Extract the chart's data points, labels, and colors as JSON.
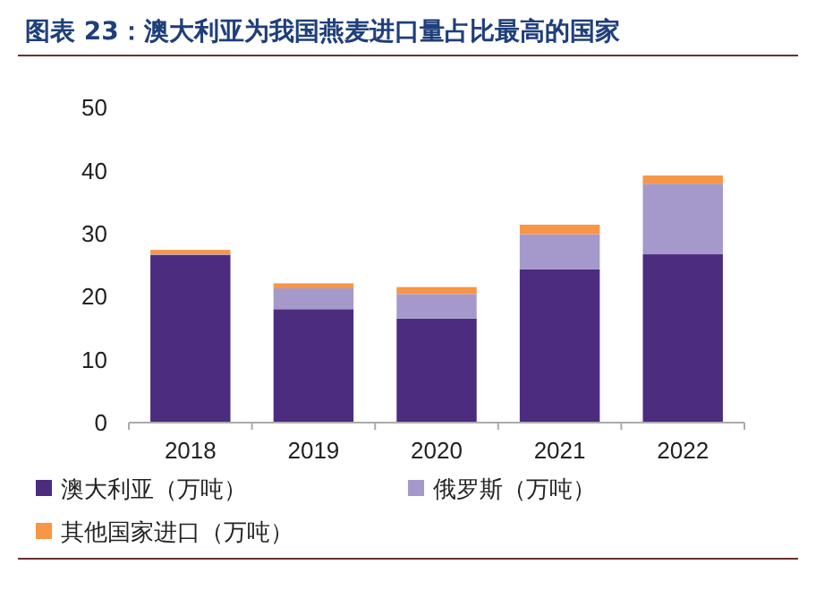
{
  "chart_data": {
    "type": "bar",
    "title": "图表 23：澳大利亚为我国燕麦进口量占比最高的国家",
    "categories": [
      "2018",
      "2019",
      "2020",
      "2021",
      "2022"
    ],
    "stacked": true,
    "series": [
      {
        "name": "澳大利亚（万吨）",
        "color": "#4b2c7f",
        "values": [
          26.6,
          18.0,
          16.5,
          24.3,
          26.7
        ]
      },
      {
        "name": "俄罗斯（万吨）",
        "color": "#a599cb",
        "values": [
          0.1,
          3.3,
          3.9,
          5.6,
          11.2
        ]
      },
      {
        "name": "其他国家进口（万吨）",
        "color": "#f79646",
        "values": [
          0.7,
          0.8,
          1.1,
          1.5,
          1.3
        ]
      }
    ],
    "ylim": [
      0,
      50
    ],
    "yticks": [
      0,
      10,
      20,
      30,
      40,
      50
    ],
    "legend": "bottom"
  }
}
